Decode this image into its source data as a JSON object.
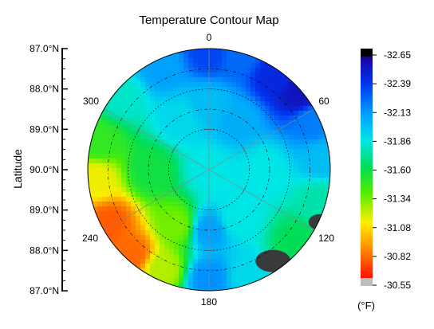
{
  "chart_data": {
    "type": "heatmap",
    "title": "Temperature Contour Map",
    "ylabel": "Latitude",
    "angular_axis": {
      "ticks": [
        "0",
        "60",
        "120",
        "180",
        "240",
        "300"
      ]
    },
    "radial_axis": {
      "tick_labels": [
        "87.0°N",
        "88.0°N",
        "89.0°N",
        "90.0°N",
        "89.0°N",
        "88.0°N",
        "87.0°N"
      ],
      "range": [
        87,
        90
      ]
    },
    "colorbar": {
      "unit": "(°F)",
      "tick_labels": [
        "-32.65",
        "-32.39",
        "-32.13",
        "-31.86",
        "-31.60",
        "-31.34",
        "-31.08",
        "-30.82",
        "-30.55"
      ],
      "range": [
        -32.65,
        -30.55
      ]
    },
    "grid": true,
    "samples": [
      {
        "angle": 0,
        "lat": 87.1,
        "value": -32.35
      },
      {
        "angle": 15,
        "lat": 87.1,
        "value": -32.25
      },
      {
        "angle": 35,
        "lat": 87.2,
        "value": -32.45
      },
      {
        "angle": 50,
        "lat": 87.1,
        "value": -32.55
      },
      {
        "angle": 65,
        "lat": 87.2,
        "value": -32.2
      },
      {
        "angle": 85,
        "lat": 87.2,
        "value": -32.0
      },
      {
        "angle": 105,
        "lat": 87.2,
        "value": -31.75
      },
      {
        "angle": 130,
        "lat": 87.2,
        "value": -31.6
      },
      {
        "angle": 160,
        "lat": 87.2,
        "value": -31.9
      },
      {
        "angle": 180,
        "lat": 87.3,
        "value": -32.15
      },
      {
        "angle": 205,
        "lat": 87.3,
        "value": -31.2
      },
      {
        "angle": 222,
        "lat": 87.2,
        "value": -30.75
      },
      {
        "angle": 242,
        "lat": 87.2,
        "value": -30.72
      },
      {
        "angle": 265,
        "lat": 87.2,
        "value": -31.1
      },
      {
        "angle": 285,
        "lat": 87.2,
        "value": -31.45
      },
      {
        "angle": 310,
        "lat": 87.2,
        "value": -31.8
      },
      {
        "angle": 335,
        "lat": 87.2,
        "value": -32.1
      },
      {
        "angle": 30,
        "lat": 88.6,
        "value": -32.05
      },
      {
        "angle": 90,
        "lat": 88.6,
        "value": -31.85
      },
      {
        "angle": 150,
        "lat": 88.6,
        "value": -31.85
      },
      {
        "angle": 180,
        "lat": 88.5,
        "value": -32.1
      },
      {
        "angle": 210,
        "lat": 88.4,
        "value": -31.3
      },
      {
        "angle": 270,
        "lat": 88.6,
        "value": -31.55
      },
      {
        "angle": 330,
        "lat": 88.6,
        "value": -31.9
      },
      {
        "angle": 0,
        "lat": 88.4,
        "value": -32.0
      },
      {
        "angle": 0,
        "lat": 90.0,
        "value": -31.85
      }
    ]
  }
}
